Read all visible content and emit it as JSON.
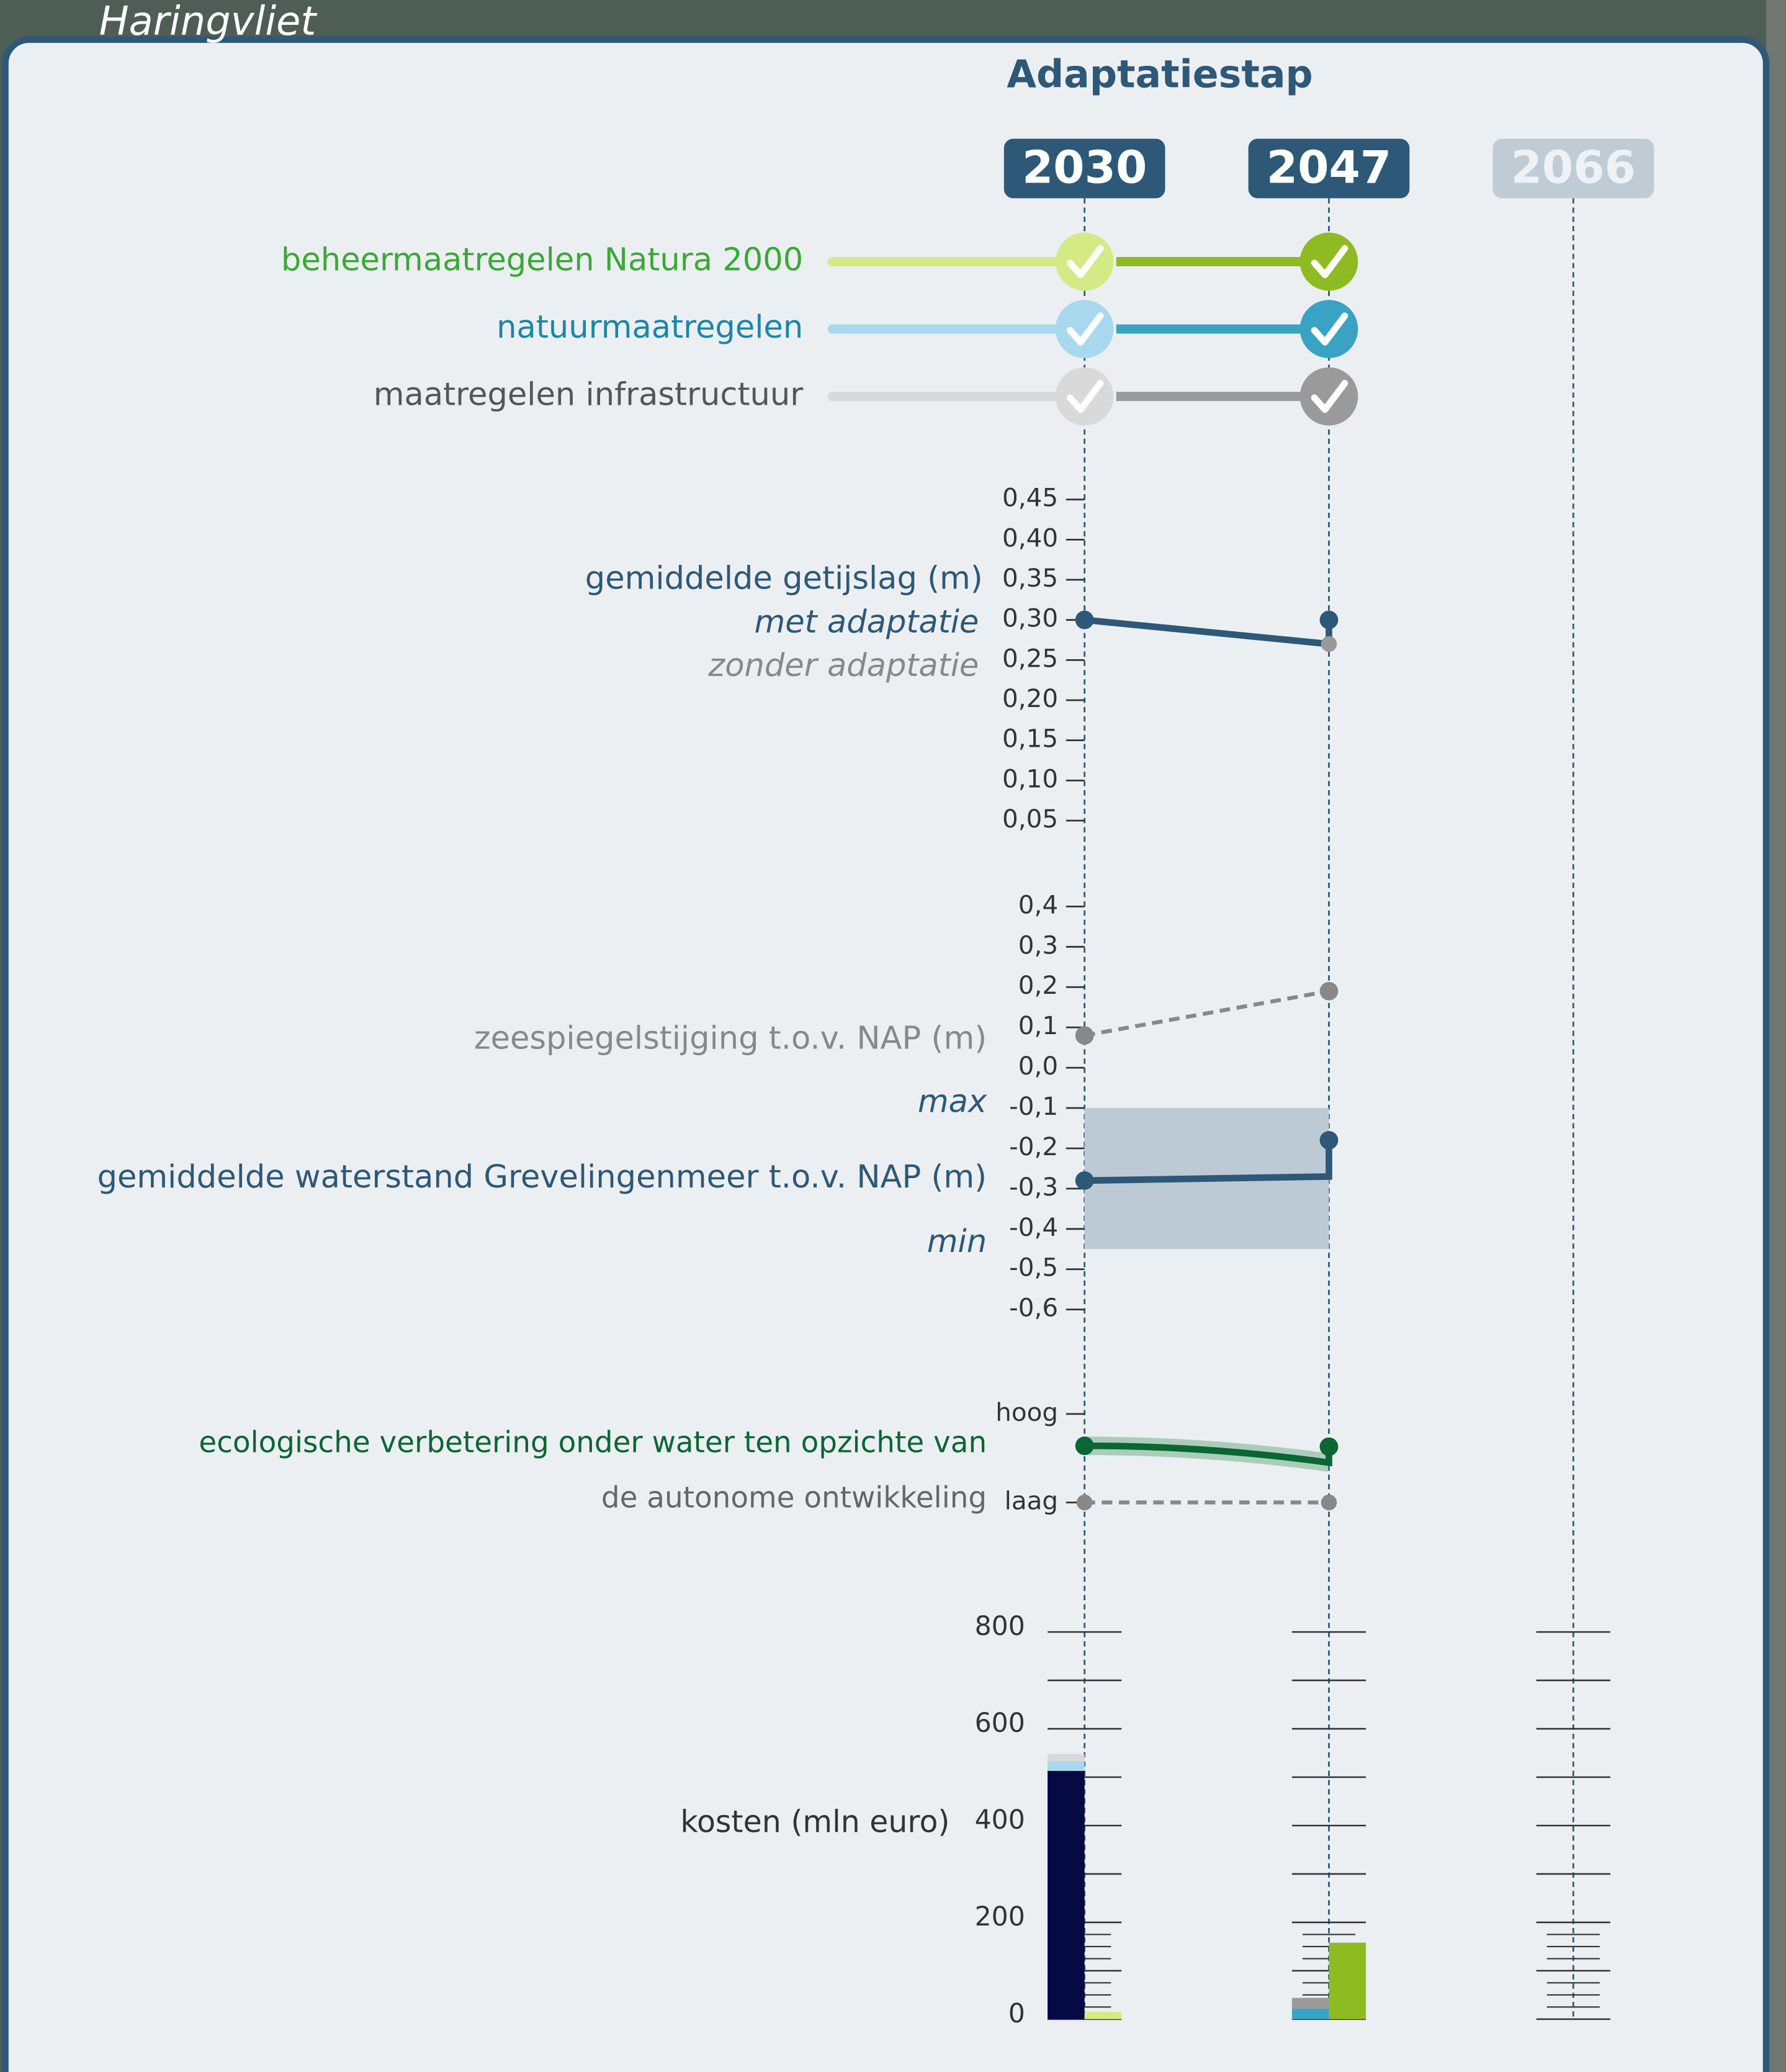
{
  "map_label": "Haringvliet",
  "title": "Adaptatiestap",
  "years": [
    {
      "label": "2030",
      "active": true
    },
    {
      "label": "2047",
      "active": true
    },
    {
      "label": "2066",
      "active": false
    }
  ],
  "measures": [
    {
      "name": "beheermaatregelen Natura 2000",
      "text_color": "#3aa935",
      "colors": [
        "#d4ea84",
        "#8fbb22"
      ]
    },
    {
      "name": "natuurmaatregelen",
      "text_color": "#1a86aa",
      "colors": [
        "#a8d8ee",
        "#3aa3c4"
      ]
    },
    {
      "name": "maatregelen infrastructuur",
      "text_color": "#555555",
      "colors": [
        "#d9d9d9",
        "#9a9a9a"
      ]
    }
  ],
  "tide": {
    "label": "gemiddelde getijslag (m)",
    "with_label": "met adaptatie",
    "without_label": "zonder adaptatie",
    "ylim": [
      0.05,
      0.45
    ],
    "yticks": [
      {
        "value": 0.45,
        "label": "0,45"
      },
      {
        "value": 0.4,
        "label": "0,40"
      },
      {
        "value": 0.35,
        "label": "0,35"
      },
      {
        "value": 0.3,
        "label": "0,30"
      },
      {
        "value": 0.25,
        "label": "0,25"
      },
      {
        "value": 0.2,
        "label": "0,20"
      },
      {
        "value": 0.15,
        "label": "0,15"
      },
      {
        "value": 0.1,
        "label": "0,10"
      },
      {
        "value": 0.05,
        "label": "0,05"
      }
    ],
    "with": [
      0.3,
      0.3
    ],
    "without": [
      0.3,
      0.27
    ]
  },
  "water": {
    "ylim": [
      -0.6,
      0.4
    ],
    "yticks": [
      {
        "value": 0.4,
        "label": "0,4"
      },
      {
        "value": 0.3,
        "label": "0,3"
      },
      {
        "value": 0.2,
        "label": "0,2"
      },
      {
        "value": 0.1,
        "label": "0,1"
      },
      {
        "value": 0,
        "label": "0,0"
      },
      {
        "value": -0.1,
        "label": "-0,1"
      },
      {
        "value": -0.2,
        "label": "-0,2"
      },
      {
        "value": -0.3,
        "label": "-0,3"
      },
      {
        "value": -0.4,
        "label": "-0,4"
      },
      {
        "value": -0.5,
        "label": "-0,5"
      },
      {
        "value": -0.6,
        "label": "-0,6"
      }
    ],
    "sea_label": "zeespiegelstijging t.o.v. NAP (m)",
    "sea": [
      0.08,
      0.19
    ],
    "lake_label": "gemiddelde waterstand Grevelingenmeer t.o.v. NAP (m)",
    "lake": [
      -0.28,
      -0.18
    ],
    "lake_without": [
      -0.28,
      -0.27
    ],
    "max_label": "max",
    "max": -0.1,
    "min_label": "min",
    "min": -0.45
  },
  "ecology": {
    "labels": [
      "ecologische verbetering onder water ten opzichte van",
      "de autonome ontwikkeling"
    ],
    "ylim": [
      0,
      1
    ],
    "yticks": [
      {
        "value": 1,
        "label": "hoog"
      },
      {
        "value": 0,
        "label": "laag"
      }
    ],
    "with": [
      0.64,
      0.63
    ],
    "without": [
      0.64,
      0.45
    ],
    "autonomous": [
      0,
      0
    ]
  },
  "costs": {
    "label": "kosten (mln euro)",
    "ylim": [
      0,
      800
    ],
    "yticks": [
      0,
      200,
      400,
      600,
      800
    ],
    "minor_ticks": [
      100,
      300,
      500,
      700
    ],
    "fine_ticks": [
      25,
      50,
      75,
      100,
      125,
      150,
      175
    ],
    "bars": [
      {
        "stack": [
          {
            "value": 513,
            "color": "#050a45"
          },
          {
            "value": 20,
            "color": "#a8d8ee"
          },
          {
            "value": 15,
            "color": "#d9d9d9"
          }
        ],
        "side": [
          {
            "value": 15,
            "color": "#d4ea84"
          }
        ]
      },
      {
        "stack": [
          {
            "value": 22,
            "color": "#3aa3c4"
          },
          {
            "value": 22,
            "color": "#9a9a9a"
          }
        ],
        "side": [
          {
            "value": 158,
            "color": "#8fbb22"
          }
        ]
      },
      {
        "stack": [],
        "side": []
      }
    ]
  }
}
